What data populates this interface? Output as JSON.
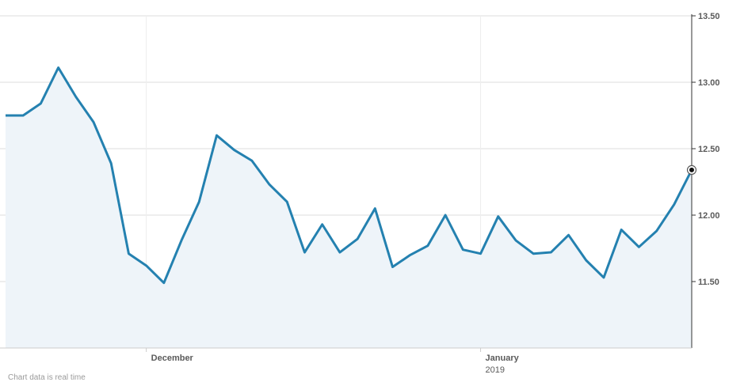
{
  "chart_data": {
    "type": "area",
    "title": "",
    "xlabel": "",
    "ylabel": "",
    "ylim": [
      11.0,
      13.5
    ],
    "yticks": [
      "13.50",
      "13.00",
      "12.50",
      "12.00",
      "11.50"
    ],
    "ytick_values": [
      13.5,
      13.0,
      12.5,
      12.0,
      11.5
    ],
    "y_axis_side": "right",
    "grid": true,
    "xtick_labels": [
      {
        "label": "December",
        "sublabel": "",
        "index": 8
      },
      {
        "label": "January",
        "sublabel": "2019",
        "index": 27
      }
    ],
    "series": [
      {
        "values": [
          12.75,
          12.75,
          12.84,
          13.11,
          12.89,
          12.7,
          12.39,
          11.71,
          11.62,
          11.49,
          11.81,
          12.1,
          12.6,
          12.49,
          12.41,
          12.23,
          12.1,
          11.72,
          11.93,
          11.72,
          11.82,
          12.05,
          11.61,
          11.7,
          11.77,
          12.0,
          11.74,
          11.71,
          11.99,
          11.81,
          11.71,
          11.72,
          11.85,
          11.66,
          11.53,
          11.89,
          11.76,
          11.88,
          12.08,
          12.34
        ],
        "color": "#2481b0",
        "fill": "#eef4f9"
      }
    ],
    "last_point_marker": true
  },
  "footer": {
    "note": "Chart data is real time"
  }
}
